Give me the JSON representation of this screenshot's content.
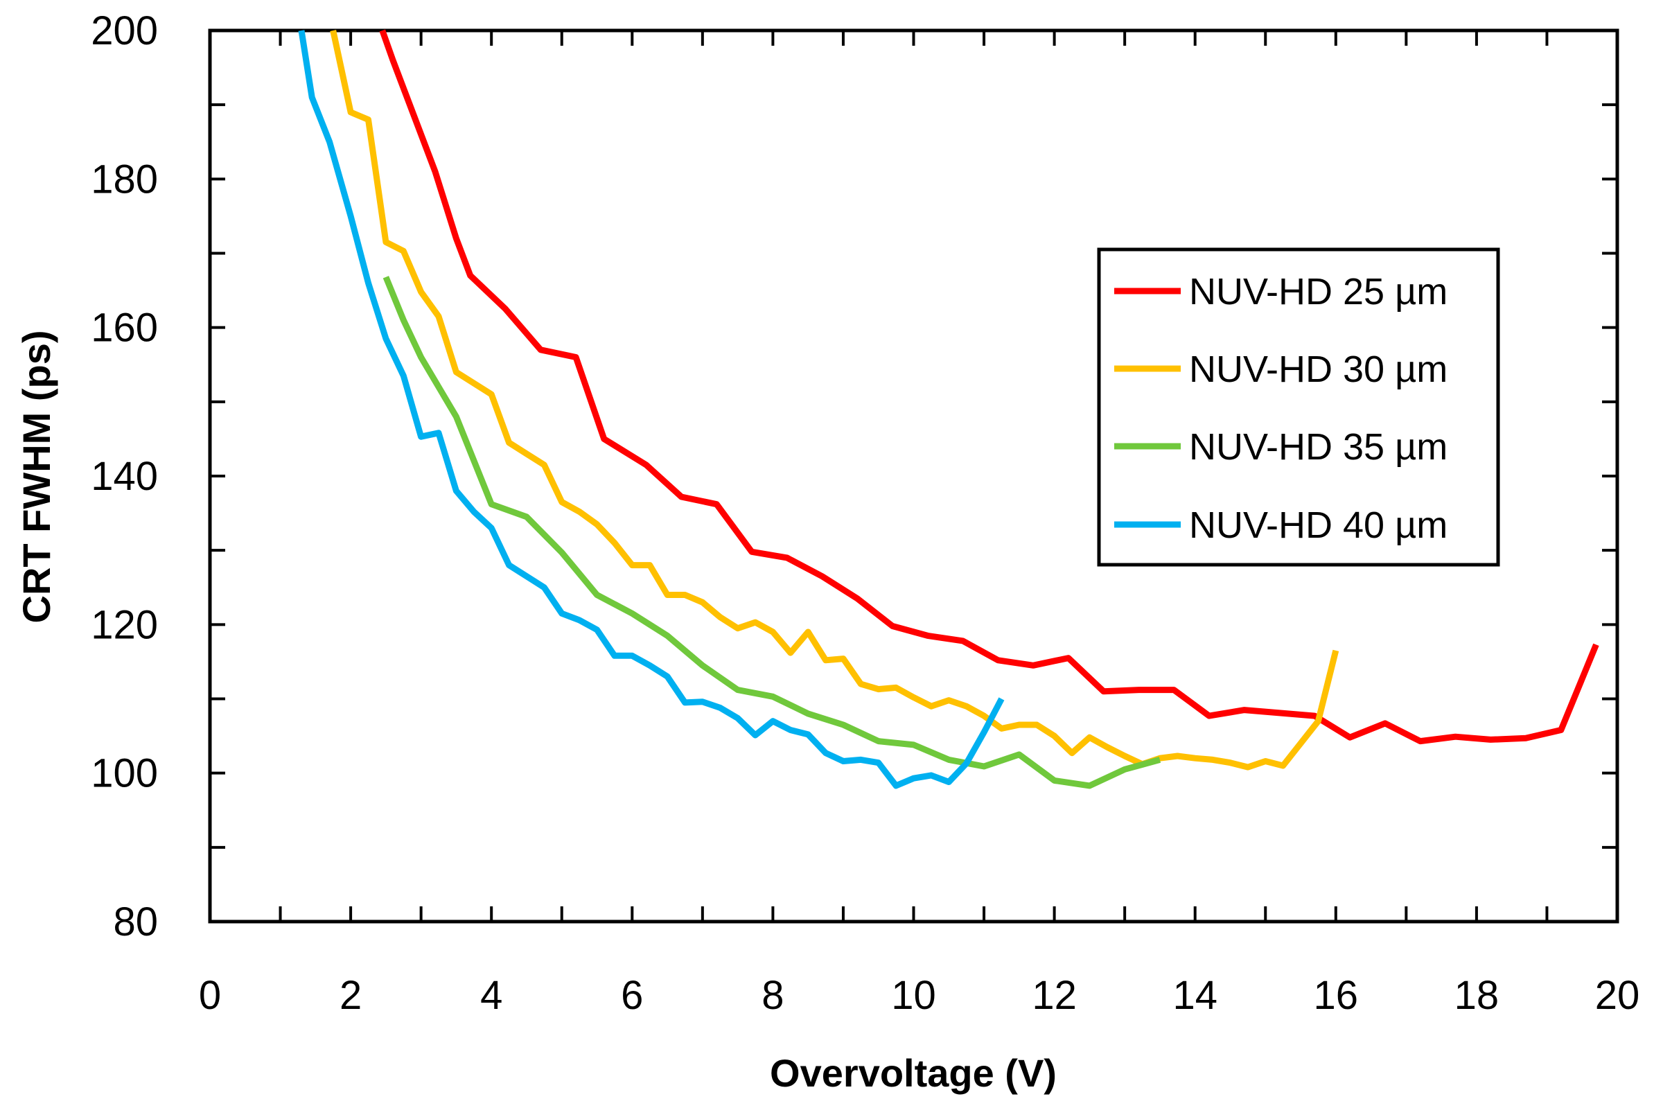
{
  "chart_data": {
    "type": "line",
    "title": "",
    "xlabel": "Overvoltage (V)",
    "ylabel": "CRT FWHM (ps)",
    "xlim": [
      0,
      20
    ],
    "ylim": [
      80,
      200
    ],
    "x_ticks": [
      "0",
      "2",
      "4",
      "6",
      "8",
      "10",
      "12",
      "14",
      "16",
      "18",
      "20"
    ],
    "y_ticks": [
      "80",
      "100",
      "120",
      "140",
      "160",
      "180",
      "200"
    ],
    "legend_position": "right",
    "grid": false,
    "series": [
      {
        "name": "NUV-HD 25 µm",
        "color": "#ff0000",
        "points": [
          [
            2.45,
            200
          ],
          [
            2.6,
            196
          ],
          [
            3.2,
            181
          ],
          [
            3.5,
            172
          ],
          [
            3.7,
            167
          ],
          [
            4.2,
            162.5
          ],
          [
            4.7,
            157
          ],
          [
            5.2,
            156
          ],
          [
            5.6,
            145
          ],
          [
            6.2,
            141.5
          ],
          [
            6.7,
            137.2
          ],
          [
            7.2,
            136.2
          ],
          [
            7.7,
            129.8
          ],
          [
            8.2,
            129
          ],
          [
            8.7,
            126.5
          ],
          [
            9.2,
            123.5
          ],
          [
            9.7,
            119.8
          ],
          [
            10.2,
            118.5
          ],
          [
            10.7,
            117.8
          ],
          [
            11.2,
            115.2
          ],
          [
            11.7,
            114.5
          ],
          [
            12.2,
            115.5
          ],
          [
            12.7,
            111
          ],
          [
            13.2,
            111.2
          ],
          [
            13.7,
            111.2
          ],
          [
            14.2,
            107.7
          ],
          [
            14.7,
            108.5
          ],
          [
            15.2,
            108.1
          ],
          [
            15.7,
            107.7
          ],
          [
            16.2,
            104.8
          ],
          [
            16.7,
            106.7
          ],
          [
            17.2,
            104.3
          ],
          [
            17.7,
            104.9
          ],
          [
            18.2,
            104.5
          ],
          [
            18.7,
            104.7
          ],
          [
            19.2,
            105.8
          ],
          [
            19.7,
            117.3
          ]
        ]
      },
      {
        "name": "NUV-HD 30 µm",
        "color": "#ffc000",
        "points": [
          [
            1.75,
            200
          ],
          [
            2.0,
            189
          ],
          [
            2.25,
            188
          ],
          [
            2.5,
            171.5
          ],
          [
            2.75,
            170.3
          ],
          [
            3.0,
            164.8
          ],
          [
            3.25,
            161.5
          ],
          [
            3.5,
            154
          ],
          [
            4.0,
            151
          ],
          [
            4.25,
            144.5
          ],
          [
            4.5,
            143
          ],
          [
            4.75,
            141.5
          ],
          [
            5.0,
            136.5
          ],
          [
            5.25,
            135.2
          ],
          [
            5.5,
            133.5
          ],
          [
            5.75,
            131
          ],
          [
            6.0,
            128
          ],
          [
            6.25,
            128
          ],
          [
            6.5,
            124
          ],
          [
            6.75,
            124
          ],
          [
            7.0,
            123
          ],
          [
            7.25,
            121
          ],
          [
            7.5,
            119.5
          ],
          [
            7.75,
            120.3
          ],
          [
            8.0,
            119
          ],
          [
            8.25,
            116.2
          ],
          [
            8.5,
            119
          ],
          [
            8.75,
            115.2
          ],
          [
            9.0,
            115.4
          ],
          [
            9.25,
            112
          ],
          [
            9.5,
            111.3
          ],
          [
            9.75,
            111.5
          ],
          [
            10.0,
            110.2
          ],
          [
            10.25,
            109
          ],
          [
            10.5,
            109.8
          ],
          [
            10.75,
            109
          ],
          [
            11.0,
            107.7
          ],
          [
            11.25,
            106
          ],
          [
            11.5,
            106.5
          ],
          [
            11.75,
            106.5
          ],
          [
            12.0,
            105
          ],
          [
            12.25,
            102.7
          ],
          [
            12.5,
            104.8
          ],
          [
            12.75,
            103.5
          ],
          [
            13.0,
            102.3
          ],
          [
            13.25,
            101.2
          ],
          [
            13.5,
            102
          ],
          [
            13.75,
            102.3
          ],
          [
            14.0,
            102
          ],
          [
            14.25,
            101.8
          ],
          [
            14.5,
            101.4
          ],
          [
            14.75,
            100.8
          ],
          [
            15.0,
            101.6
          ],
          [
            15.25,
            101
          ],
          [
            15.75,
            107
          ],
          [
            16.0,
            116.5
          ]
        ]
      },
      {
        "name": "NUV-HD 35 µm",
        "color": "#70c83c",
        "points": [
          [
            2.5,
            166.8
          ],
          [
            2.75,
            161
          ],
          [
            3.0,
            156
          ],
          [
            3.5,
            148
          ],
          [
            4.0,
            136.2
          ],
          [
            4.5,
            134.5
          ],
          [
            5.0,
            129.7
          ],
          [
            5.5,
            124
          ],
          [
            6.0,
            121.5
          ],
          [
            6.5,
            118.5
          ],
          [
            7.0,
            114.5
          ],
          [
            7.5,
            111.2
          ],
          [
            8.0,
            110.3
          ],
          [
            8.5,
            108
          ],
          [
            9.0,
            106.5
          ],
          [
            9.5,
            104.3
          ],
          [
            10.0,
            103.8
          ],
          [
            10.5,
            101.8
          ],
          [
            11.0,
            100.9
          ],
          [
            11.5,
            102.5
          ],
          [
            12.0,
            99
          ],
          [
            12.5,
            98.3
          ],
          [
            13.0,
            100.5
          ],
          [
            13.5,
            101.8
          ]
        ]
      },
      {
        "name": "NUV-HD 40 µm",
        "color": "#00b0f0",
        "points": [
          [
            1.3,
            200
          ],
          [
            1.45,
            191
          ],
          [
            1.7,
            185
          ],
          [
            2.0,
            175
          ],
          [
            2.25,
            166
          ],
          [
            2.5,
            158.5
          ],
          [
            2.75,
            153.5
          ],
          [
            3.0,
            145.3
          ],
          [
            3.25,
            145.8
          ],
          [
            3.5,
            138
          ],
          [
            3.75,
            135.2
          ],
          [
            4.0,
            133
          ],
          [
            4.25,
            128
          ],
          [
            4.5,
            126.5
          ],
          [
            4.75,
            125
          ],
          [
            5.0,
            121.5
          ],
          [
            5.25,
            120.6
          ],
          [
            5.5,
            119.3
          ],
          [
            5.75,
            115.8
          ],
          [
            6.0,
            115.8
          ],
          [
            6.25,
            114.5
          ],
          [
            6.5,
            113
          ],
          [
            6.75,
            109.5
          ],
          [
            7.0,
            109.6
          ],
          [
            7.25,
            108.8
          ],
          [
            7.5,
            107.4
          ],
          [
            7.75,
            105.1
          ],
          [
            8.0,
            107
          ],
          [
            8.25,
            105.8
          ],
          [
            8.5,
            105.2
          ],
          [
            8.75,
            102.7
          ],
          [
            9.0,
            101.6
          ],
          [
            9.25,
            101.8
          ],
          [
            9.5,
            101.4
          ],
          [
            9.75,
            98.3
          ],
          [
            10.0,
            99.3
          ],
          [
            10.25,
            99.7
          ],
          [
            10.5,
            98.8
          ],
          [
            10.75,
            101.3
          ],
          [
            11.0,
            105.5
          ],
          [
            11.25,
            110
          ]
        ]
      }
    ]
  }
}
